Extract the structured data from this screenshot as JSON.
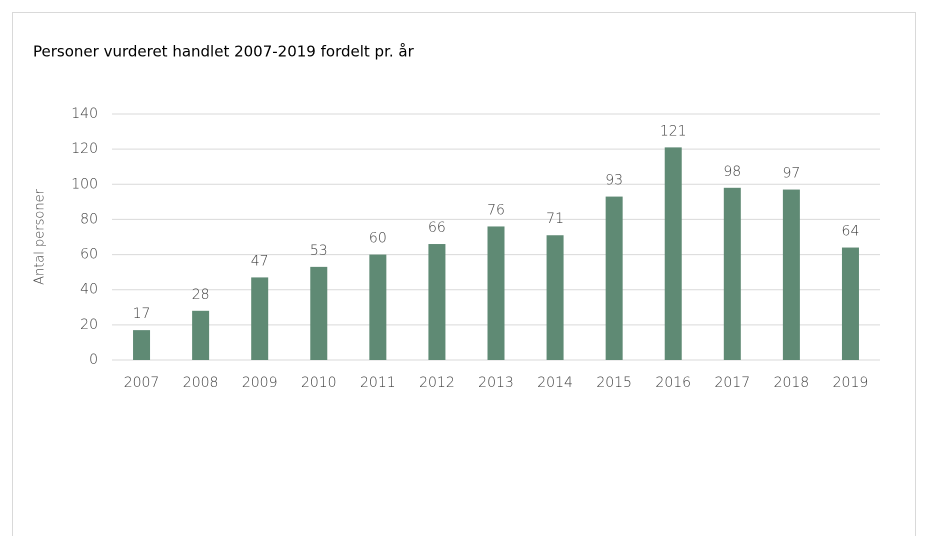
{
  "chart_data": {
    "type": "bar",
    "title": "Personer vurderet handlet 2007-2019 fordelt pr. år",
    "y_label": "Antal personer",
    "categories": [
      "2007",
      "2008",
      "2009",
      "2010",
      "2011",
      "2012",
      "2013",
      "2014",
      "2015",
      "2016",
      "2017",
      "2018",
      "2019"
    ],
    "values": [
      17,
      28,
      47,
      53,
      60,
      66,
      76,
      71,
      93,
      121,
      98,
      97,
      64
    ],
    "color": "#5f8a74",
    "ylim": [
      0,
      140
    ],
    "yticks": [
      0,
      20,
      40,
      60,
      80,
      100,
      120,
      140
    ],
    "grid": true,
    "data_labels": true
  }
}
